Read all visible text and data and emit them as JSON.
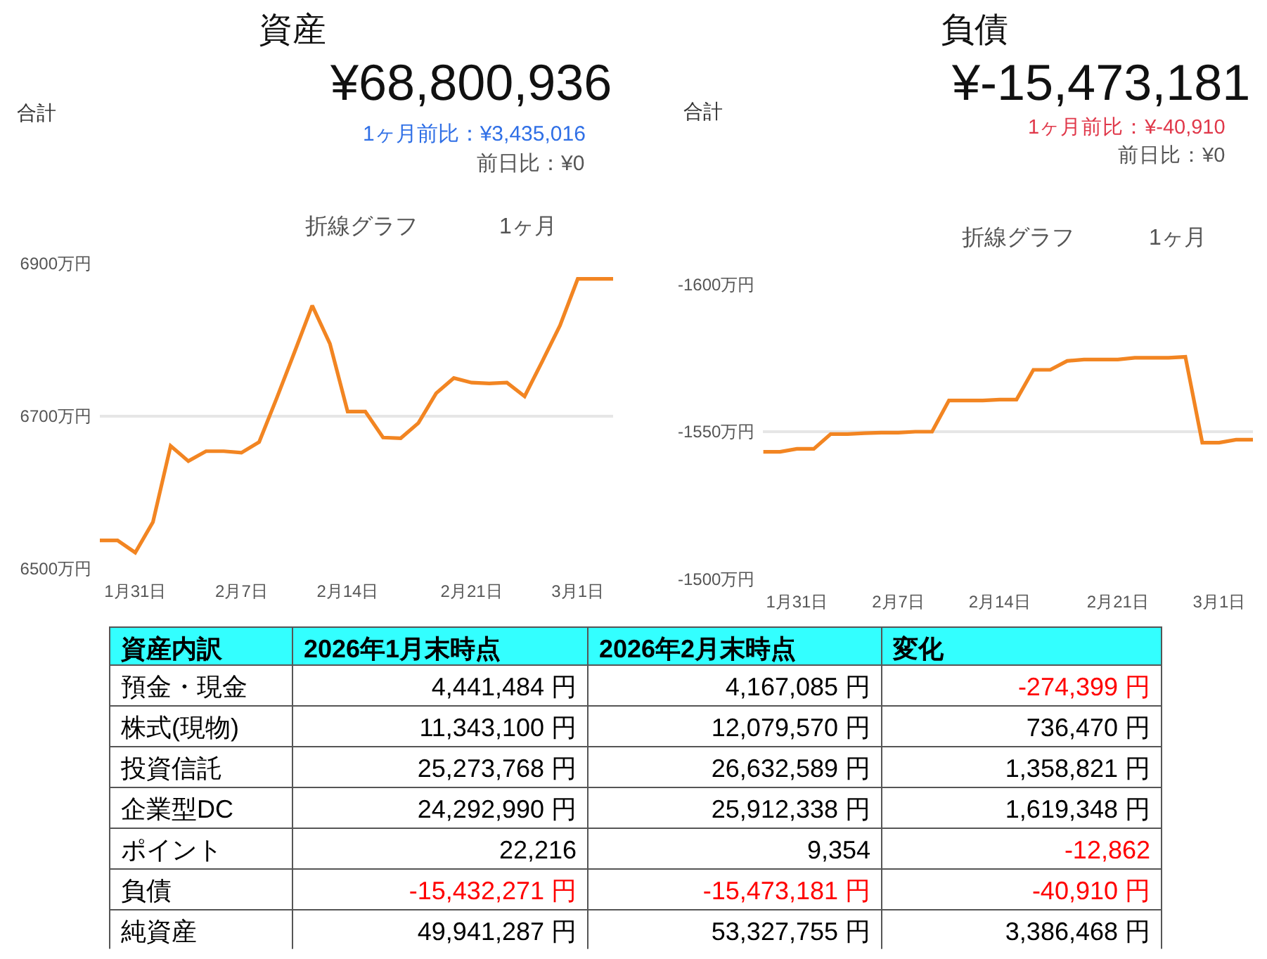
{
  "chart_data": [
    {
      "type": "line",
      "title": "資産",
      "subtitle": "¥68,800,936",
      "annotations": [
        "合計",
        "1ヶ月前比：¥3,435,016",
        "前日比：¥0",
        "折線グラフ",
        "1ヶ月"
      ],
      "categories": [
        null,
        null,
        "1月31日",
        null,
        null,
        null,
        null,
        null,
        "2月7日",
        null,
        null,
        null,
        null,
        null,
        "2月14日",
        null,
        null,
        null,
        null,
        null,
        null,
        "2月21日",
        null,
        null,
        null,
        null,
        null,
        "3月1日",
        null,
        null
      ],
      "values": [
        6537,
        6537,
        6521,
        6561,
        6661,
        6641,
        6654,
        6654,
        6652,
        6666,
        6724,
        6784,
        6845,
        6795,
        6706,
        6706,
        6672,
        6671,
        6691,
        6730,
        6750,
        6744,
        6743,
        6744,
        6726,
        6772,
        6819,
        6880,
        6880,
        6880
      ],
      "color": "#f28522",
      "ylim": [
        6500,
        6900
      ],
      "yticks": [
        {
          "value": 6500,
          "label": "6500万円"
        },
        {
          "value": 6700,
          "label": "6700万円"
        },
        {
          "value": 6900,
          "label": "6900万円"
        }
      ],
      "grid": "y"
    },
    {
      "type": "line",
      "title": "負債",
      "subtitle": "¥-15,473,181",
      "annotations": [
        "合計",
        "1ヶ月前比：¥-40,910",
        "前日比：¥0",
        "折線グラフ",
        "1ヶ月"
      ],
      "categories": [
        null,
        null,
        "1月31日",
        null,
        null,
        null,
        null,
        null,
        "2月7日",
        null,
        null,
        null,
        null,
        null,
        "2月14日",
        null,
        null,
        null,
        null,
        null,
        null,
        "2月21日",
        null,
        null,
        null,
        null,
        null,
        "3月1日",
        null,
        null
      ],
      "values": [
        -1543.2,
        -1543.2,
        -1544.2,
        -1544.2,
        -1549.2,
        -1549.2,
        -1549.5,
        -1549.7,
        -1549.7,
        -1550.0,
        -1550.0,
        -1560.6,
        -1560.6,
        -1560.6,
        -1560.9,
        -1560.9,
        -1571.0,
        -1571.0,
        -1574.0,
        -1574.5,
        -1574.5,
        -1574.5,
        -1575.1,
        -1575.1,
        -1575.1,
        -1575.4,
        -1546.3,
        -1546.3,
        -1547.3,
        -1547.3
      ],
      "color": "#f28522",
      "ylim": [
        -1500,
        -1600
      ],
      "yticks": [
        {
          "value": -1600,
          "label": "-1600万円"
        },
        {
          "value": -1550,
          "label": "-1550万円"
        },
        {
          "value": -1500,
          "label": "-1500万円"
        }
      ],
      "grid": "y"
    },
    {
      "type": "other",
      "title": "資産内訳",
      "categories": [
        "2026年1月末時点",
        "2026年2月末時点",
        "変化"
      ],
      "y_categories": [
        "預金・現金",
        "株式(現物)",
        "投資信託",
        "企業型DC",
        "ポイント",
        "負債",
        "純資産"
      ],
      "cell_labels": [
        [
          "4,441,484 円",
          "4,167,085 円",
          "-274,399 円"
        ],
        [
          "11,343,100 円",
          "12,079,570 円",
          "736,470 円"
        ],
        [
          "25,273,768 円",
          "26,632,589 円",
          "1,358,821 円"
        ],
        [
          "24,292,990 円",
          "25,912,338 円",
          "1,619,348 円"
        ],
        [
          "22,216",
          "9,354",
          "-12,862"
        ],
        [
          "-15,432,271 円",
          "-15,473,181 円",
          "-40,910 円"
        ],
        [
          "49,941,287 円",
          "53,327,755 円",
          "3,386,468 円"
        ]
      ],
      "colors": [
        [
          "#000000",
          "#000000",
          "#ff0000"
        ],
        [
          "#000000",
          "#000000",
          "#000000"
        ],
        [
          "#000000",
          "#000000",
          "#000000"
        ],
        [
          "#000000",
          "#000000",
          "#000000"
        ],
        [
          "#000000",
          "#000000",
          "#ff0000"
        ],
        [
          "#ff0000",
          "#ff0000",
          "#ff0000"
        ],
        [
          "#000000",
          "#000000",
          "#000000"
        ]
      ]
    }
  ]
}
